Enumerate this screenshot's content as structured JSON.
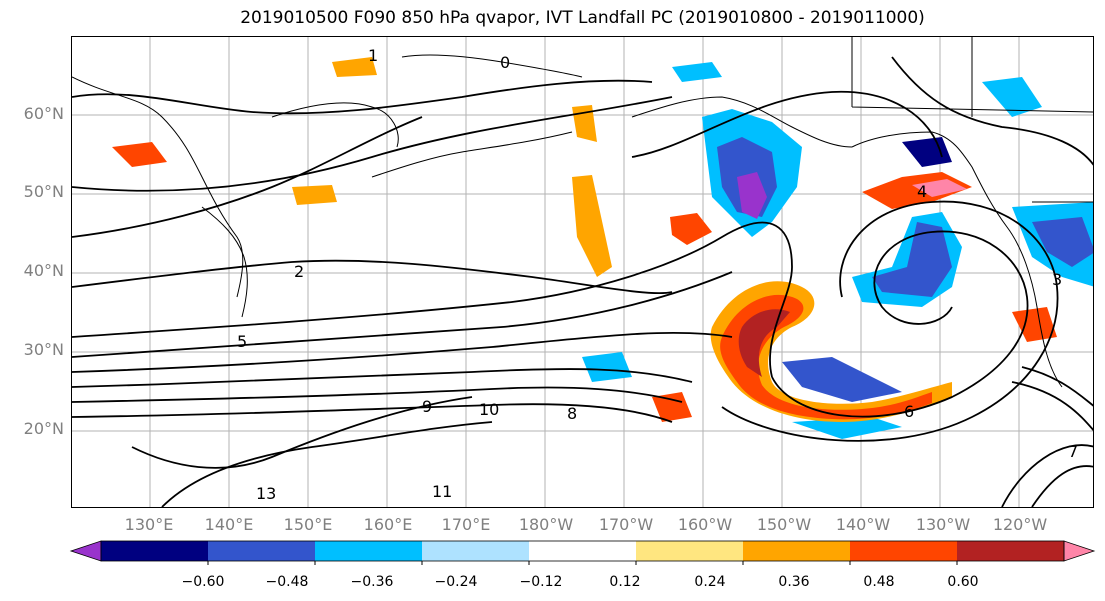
{
  "title": "2019010500 F090 850 hPa qvapor, IVT Landfall PC (2019010800 - 2019011000)",
  "lat_labels": [
    "60°N",
    "50°N",
    "40°N",
    "30°N",
    "20°N"
  ],
  "lon_labels": [
    "130°E",
    "140°E",
    "150°E",
    "160°E",
    "170°E",
    "180°W",
    "170°W",
    "160°W",
    "150°W",
    "140°W",
    "130°W",
    "120°W"
  ],
  "colorbar": {
    "colors": [
      "#9933cc",
      "#000080",
      "#3355cc",
      "#00bfff",
      "#aee2ff",
      "#ffffff",
      "#ffe680",
      "#ffa500",
      "#ff4500",
      "#b22222",
      "#ff85a8"
    ],
    "tick_labels": [
      "−0.60",
      "−0.48",
      "−0.36",
      "−0.24",
      "−0.12",
      "0.12",
      "0.24",
      "0.36",
      "0.48",
      "0.60"
    ],
    "levels": [
      -0.6,
      -0.48,
      -0.36,
      -0.24,
      -0.12,
      0.12,
      0.24,
      0.36,
      0.48,
      0.6
    ],
    "extend": "both"
  },
  "contour_labels": [
    "0",
    "1",
    "2",
    "3",
    "4",
    "5",
    "6",
    "7",
    "8",
    "9",
    "10",
    "11",
    "13"
  ],
  "extent": {
    "lon": [
      120,
      245
    ],
    "lat": [
      10,
      70
    ]
  }
}
